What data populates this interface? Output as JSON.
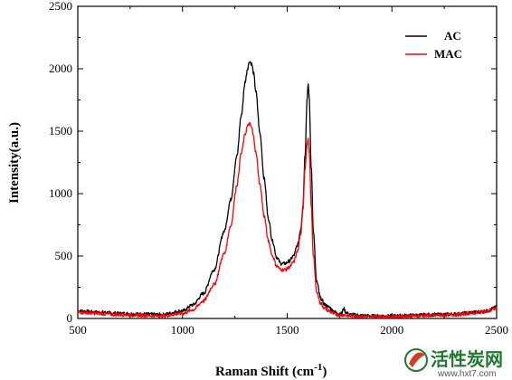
{
  "chart_data": {
    "type": "line",
    "xlabel": "Raman Shift (cm",
    "xlabel_superscript": "-1",
    "xlabel_suffix": ")",
    "ylabel": "Intensity(a.u.)",
    "xlim": [
      500,
      2500
    ],
    "ylim": [
      0,
      2500
    ],
    "x_ticks": [
      500,
      1000,
      1500,
      2000,
      2500
    ],
    "y_ticks": [
      0,
      500,
      1000,
      1500,
      2000,
      2500
    ],
    "grid": false,
    "legend_position": "top-right",
    "series": [
      {
        "name": "AC",
        "color": "#000000",
        "x": [
          500,
          600,
          700,
          800,
          900,
          1000,
          1050,
          1100,
          1150,
          1200,
          1230,
          1260,
          1280,
          1300,
          1310,
          1320,
          1330,
          1340,
          1350,
          1370,
          1390,
          1410,
          1430,
          1450,
          1470,
          1490,
          1510,
          1530,
          1550,
          1565,
          1575,
          1585,
          1595,
          1600,
          1605,
          1615,
          1625,
          1640,
          1660,
          1680,
          1700,
          1720,
          1740,
          1760,
          1770,
          1780,
          1800,
          1900,
          2000,
          2100,
          2200,
          2300,
          2400,
          2450,
          2500
        ],
        "y": [
          60,
          50,
          40,
          35,
          30,
          60,
          110,
          200,
          390,
          700,
          950,
          1300,
          1620,
          1900,
          2000,
          2060,
          2040,
          1960,
          1820,
          1480,
          1120,
          800,
          620,
          490,
          440,
          440,
          460,
          500,
          590,
          720,
          900,
          1300,
          1760,
          1890,
          1760,
          1200,
          700,
          300,
          160,
          110,
          90,
          60,
          40,
          40,
          80,
          50,
          30,
          20,
          20,
          25,
          30,
          35,
          50,
          60,
          90
        ]
      },
      {
        "name": "MAC",
        "color": "#ff0000",
        "x": [
          500,
          600,
          700,
          800,
          900,
          1000,
          1050,
          1100,
          1150,
          1200,
          1230,
          1260,
          1280,
          1300,
          1310,
          1320,
          1330,
          1340,
          1350,
          1370,
          1390,
          1410,
          1430,
          1450,
          1470,
          1490,
          1510,
          1530,
          1550,
          1565,
          1575,
          1585,
          1595,
          1600,
          1605,
          1615,
          1625,
          1640,
          1660,
          1680,
          1700,
          1720,
          1740,
          1760,
          1770,
          1780,
          1800,
          1900,
          2000,
          2100,
          2200,
          2300,
          2400,
          2450,
          2500
        ],
        "y": [
          50,
          40,
          30,
          25,
          20,
          40,
          70,
          140,
          270,
          520,
          740,
          1070,
          1320,
          1480,
          1540,
          1560,
          1530,
          1450,
          1330,
          1070,
          820,
          620,
          500,
          420,
          390,
          390,
          410,
          450,
          540,
          680,
          880,
          1200,
          1390,
          1430,
          1340,
          900,
          500,
          220,
          120,
          80,
          60,
          40,
          30,
          25,
          30,
          25,
          20,
          15,
          15,
          20,
          25,
          30,
          45,
          55,
          80
        ]
      }
    ]
  },
  "watermark": {
    "brand": "活性炭网",
    "url": "www.hxt7.com",
    "logo_color": "#1f7a2e",
    "logo_accent": "#d04020"
  }
}
